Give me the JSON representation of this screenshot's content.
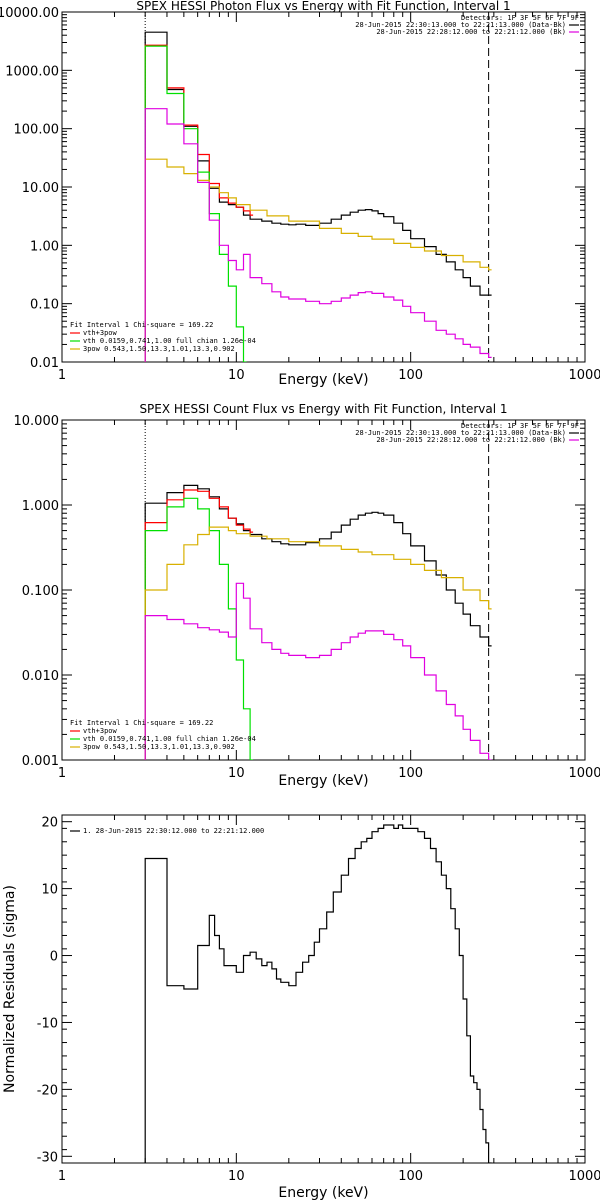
{
  "chart_data": [
    {
      "type": "line",
      "title": "SPEX HESSI Photon Flux vs Energy with Fit Function, Interval 1",
      "xlabel": "Energy (keV)",
      "ylabel": "",
      "xscale": "log",
      "yscale": "log",
      "xlim": [
        1,
        1000
      ],
      "ylim": [
        0.01,
        10000
      ],
      "x_ticks": [
        "1",
        "10",
        "100",
        "1000"
      ],
      "y_ticks": [
        "0.01",
        "0.10",
        "1.00",
        "10.00",
        "100.00",
        "1000.00",
        "10000.00"
      ],
      "legend": {
        "placement": "bottom-left",
        "header": "Fit Interval  1    Chi-square = 169.22",
        "items": [
          "vth+3pow",
          "vth 0.0159,0.741,1.00  full chian 1.26e-04",
          "3pow 0.543,1.50,13.3,1.01,13.3,0.902"
        ]
      },
      "info": {
        "placement": "top-right",
        "lines": [
          "Detectors: 1F 3F 5F 6F 7F 9F",
          "28-Jun-2015 22:30:13.000 to 22:21:13.000 (Data-Bk)",
          "28-Jun-2015 22:28:12.000 to 22:21:12.000 (Bk)"
        ]
      },
      "vlines": [
        3.0,
        280
      ],
      "series": [
        {
          "name": "Data-Bk",
          "color": "#000000",
          "x": [
            3.0,
            4.0,
            5.0,
            6.0,
            7.0,
            8.0,
            9.0,
            10.0,
            11.0,
            12.0,
            14.0,
            16.0,
            18.0,
            20.0,
            22.0,
            25.0,
            30.0,
            35.0,
            40.0,
            45.0,
            50.0,
            55.0,
            60.0,
            65.0,
            70.0,
            80.0,
            90.0,
            100.0,
            120.0,
            140.0,
            160.0,
            180.0,
            200.0,
            220.0,
            250.0,
            280.0
          ],
          "y": [
            4500,
            470,
            110,
            28,
            9.5,
            5.5,
            5.0,
            4.5,
            3.3,
            2.8,
            2.6,
            2.4,
            2.3,
            2.25,
            2.3,
            2.2,
            2.4,
            2.8,
            3.3,
            3.7,
            4.0,
            4.1,
            3.9,
            3.5,
            3.1,
            2.4,
            1.8,
            1.3,
            0.95,
            0.7,
            0.52,
            0.38,
            0.28,
            0.2,
            0.14,
            0.14
          ]
        },
        {
          "name": "vth+3pow",
          "color": "#ff0000",
          "x": [
            3.0,
            4.0,
            5.0,
            6.0,
            7.0,
            8.0,
            9.0,
            10.0,
            11.0,
            12.0
          ],
          "y": [
            2700,
            500,
            115,
            36,
            11.5,
            6.5,
            5.3,
            4.5,
            3.9,
            3.3
          ]
        },
        {
          "name": "vth",
          "color": "#00e000",
          "x": [
            3.0,
            4.0,
            5.0,
            6.0,
            7.0,
            8.0,
            9.0,
            10.0,
            11.0
          ],
          "y": [
            2600,
            400,
            100,
            18,
            3.5,
            0.7,
            0.2,
            0.04,
            0.01
          ]
        },
        {
          "name": "3pow",
          "color": "#d8b000",
          "x": [
            3.0,
            4.0,
            5.0,
            6.0,
            7.0,
            8.0,
            9.0,
            10.0,
            12.0,
            15.0,
            20.0,
            30.0,
            40.0,
            50.0,
            60.0,
            80.0,
            100.0,
            120.0,
            150.0,
            200.0,
            250.0,
            280.0
          ],
          "y": [
            30,
            22,
            17,
            13,
            10,
            8.0,
            6.5,
            5.0,
            4.0,
            3.2,
            2.6,
            1.95,
            1.6,
            1.42,
            1.28,
            1.08,
            0.92,
            0.8,
            0.67,
            0.52,
            0.42,
            0.38
          ]
        },
        {
          "name": "Bk",
          "color": "#e000e0",
          "x": [
            3.0,
            4.0,
            5.0,
            6.0,
            7.0,
            8.0,
            9.0,
            10.0,
            11.0,
            12.0,
            14.0,
            16.0,
            18.0,
            20.0,
            25.0,
            30.0,
            35.0,
            40.0,
            45.0,
            50.0,
            55.0,
            60.0,
            70.0,
            80.0,
            90.0,
            100.0,
            120.0,
            140.0,
            160.0,
            180.0,
            200.0,
            220.0,
            250.0,
            280.0
          ],
          "y": [
            220,
            120,
            55,
            12,
            2.7,
            1.0,
            0.55,
            0.38,
            0.7,
            0.28,
            0.22,
            0.16,
            0.13,
            0.12,
            0.11,
            0.1,
            0.11,
            0.125,
            0.14,
            0.155,
            0.16,
            0.15,
            0.13,
            0.115,
            0.09,
            0.07,
            0.05,
            0.035,
            0.03,
            0.025,
            0.02,
            0.018,
            0.014,
            0.012
          ]
        }
      ]
    },
    {
      "type": "line",
      "title": "SPEX HESSI Count Flux vs Energy with Fit Function, Interval 1",
      "xlabel": "Energy (keV)",
      "ylabel": "",
      "xscale": "log",
      "yscale": "log",
      "xlim": [
        1,
        1000
      ],
      "ylim": [
        0.001,
        10
      ],
      "x_ticks": [
        "1",
        "10",
        "100",
        "1000"
      ],
      "y_ticks": [
        "0.001",
        "0.010",
        "0.100",
        "1.000",
        "10.000"
      ],
      "legend": {
        "placement": "bottom-left",
        "header": "Fit Interval  1    Chi-square = 169.22",
        "items": [
          "vth+3pow",
          "vth 0.0159,0.741,1.00  full chian 1.26e-04",
          "3pow 0.543,1.50,13.3,1.01,13.3,0.902"
        ]
      },
      "info": {
        "placement": "top-right",
        "lines": [
          "Detectors: 1F 3F 5F 6F 7F 9F",
          "28-Jun-2015 22:30:13.000 to 22:21:13.000 (Data-Bk)",
          "28-Jun-2015 22:28:12.000 to 22:21:12.000 (Bk)"
        ]
      },
      "vlines": [
        3.0,
        280
      ],
      "series": [
        {
          "name": "Data-Bk",
          "color": "#000000",
          "x": [
            3.0,
            4.0,
            5.0,
            6.0,
            7.0,
            8.0,
            9.0,
            10.0,
            11.0,
            12.0,
            14.0,
            16.0,
            18.0,
            20.0,
            25.0,
            30.0,
            35.0,
            40.0,
            45.0,
            50.0,
            55.0,
            60.0,
            65.0,
            70.0,
            80.0,
            90.0,
            100.0,
            120.0,
            140.0,
            160.0,
            180.0,
            200.0,
            220.0,
            250.0,
            280.0
          ],
          "y": [
            1.05,
            1.4,
            1.7,
            1.55,
            1.25,
            0.9,
            0.7,
            0.6,
            0.5,
            0.45,
            0.4,
            0.37,
            0.35,
            0.34,
            0.36,
            0.4,
            0.48,
            0.58,
            0.68,
            0.76,
            0.8,
            0.82,
            0.8,
            0.76,
            0.62,
            0.46,
            0.33,
            0.22,
            0.15,
            0.1,
            0.07,
            0.052,
            0.038,
            0.028,
            0.022
          ]
        },
        {
          "name": "vth+3pow",
          "color": "#ff0000",
          "x": [
            3.0,
            4.0,
            5.0,
            6.0,
            7.0,
            8.0,
            9.0,
            10.0,
            11.0,
            12.0
          ],
          "y": [
            0.62,
            1.15,
            1.5,
            1.45,
            1.2,
            0.95,
            0.7,
            0.58,
            0.52,
            0.48
          ]
        },
        {
          "name": "vth",
          "color": "#00e000",
          "x": [
            3.0,
            4.0,
            5.0,
            6.0,
            7.0,
            8.0,
            9.0,
            10.0,
            11.0,
            12.0
          ],
          "y": [
            0.5,
            0.95,
            1.2,
            0.9,
            0.5,
            0.2,
            0.06,
            0.015,
            0.004,
            0.001
          ]
        },
        {
          "name": "3pow",
          "color": "#d8b000",
          "x": [
            3.0,
            4.0,
            5.0,
            6.0,
            7.0,
            8.0,
            9.0,
            10.0,
            12.0,
            15.0,
            20.0,
            30.0,
            40.0,
            50.0,
            60.0,
            80.0,
            100.0,
            120.0,
            150.0,
            200.0,
            250.0,
            280.0
          ],
          "y": [
            0.1,
            0.2,
            0.34,
            0.45,
            0.55,
            0.55,
            0.5,
            0.46,
            0.43,
            0.4,
            0.37,
            0.33,
            0.3,
            0.28,
            0.26,
            0.23,
            0.2,
            0.17,
            0.14,
            0.1,
            0.075,
            0.06
          ]
        },
        {
          "name": "Bk",
          "color": "#e000e0",
          "x": [
            3.0,
            4.0,
            5.0,
            6.0,
            7.0,
            8.0,
            9.0,
            10.0,
            11.0,
            12.0,
            14.0,
            16.0,
            18.0,
            20.0,
            25.0,
            30.0,
            35.0,
            40.0,
            45.0,
            50.0,
            55.0,
            60.0,
            70.0,
            80.0,
            90.0,
            100.0,
            120.0,
            140.0,
            160.0,
            180.0,
            200.0,
            220.0,
            250.0,
            280.0
          ],
          "y": [
            0.05,
            0.045,
            0.04,
            0.036,
            0.034,
            0.032,
            0.028,
            0.12,
            0.08,
            0.035,
            0.024,
            0.02,
            0.018,
            0.017,
            0.016,
            0.017,
            0.02,
            0.024,
            0.028,
            0.031,
            0.033,
            0.033,
            0.03,
            0.026,
            0.022,
            0.016,
            0.01,
            0.0065,
            0.0045,
            0.0033,
            0.0023,
            0.0017,
            0.0012,
            0.001
          ]
        }
      ]
    },
    {
      "type": "line",
      "title": "",
      "xlabel": "Energy (keV)",
      "ylabel": "Normalized Residuals (sigma)",
      "xscale": "log",
      "yscale": "linear",
      "xlim": [
        1,
        1000
      ],
      "ylim": [
        -31,
        21
      ],
      "x_ticks": [
        "1",
        "10",
        "100",
        "1000"
      ],
      "y_ticks": [
        "20",
        "10",
        "0",
        "-10",
        "-20",
        "-30"
      ],
      "y_tick_values": [
        20,
        10,
        0,
        -10,
        -20,
        -30
      ],
      "legend": {
        "placement": "top-left",
        "header": "",
        "items": [
          "1. 28-Jun-2015 22:30:12.000 to 22:21:12.000"
        ]
      },
      "series": [
        {
          "name": "1. 28-Jun-2015 22:30:12.000 to 22:21:12.000",
          "color": "#000000",
          "x": [
            3.0,
            4.0,
            5.0,
            6.0,
            6.5,
            7.0,
            7.5,
            8.0,
            8.5,
            9.0,
            9.5,
            10.0,
            11.0,
            12.0,
            13.0,
            14.0,
            15.0,
            16.0,
            17.0,
            18.0,
            20.0,
            22.0,
            24.0,
            26.0,
            28.0,
            30.0,
            33.0,
            36.0,
            40.0,
            44.0,
            48.0,
            52.0,
            56.0,
            60.0,
            65.0,
            70.0,
            75.0,
            80.0,
            85.0,
            90.0,
            100.0,
            110.0,
            120.0,
            130.0,
            140.0,
            150.0,
            160.0,
            170.0,
            180.0,
            190.0,
            200.0,
            210.0,
            220.0,
            230.0,
            240.0,
            250.0,
            260.0,
            270.0,
            280.0
          ],
          "y": [
            14.5,
            -4.5,
            -5.0,
            1.5,
            1.5,
            6.0,
            3.0,
            1.0,
            -1.5,
            -1.5,
            -1.5,
            -2.5,
            0.0,
            0.5,
            -0.5,
            -1.5,
            -1.0,
            -2.0,
            -3.5,
            -4.0,
            -4.5,
            -2.5,
            -1.0,
            0.0,
            2.0,
            4.0,
            6.5,
            9.5,
            12.0,
            14.5,
            16.0,
            17.0,
            17.5,
            18.5,
            19.0,
            19.5,
            19.5,
            19.0,
            19.5,
            19.0,
            19.0,
            18.5,
            17.5,
            16.0,
            14.0,
            12.0,
            10.0,
            7.0,
            4.0,
            0.0,
            -6.5,
            -12.0,
            -18.0,
            -19.0,
            -20.0,
            -23.0,
            -26.0,
            -28.0,
            -31.0
          ]
        }
      ]
    }
  ]
}
